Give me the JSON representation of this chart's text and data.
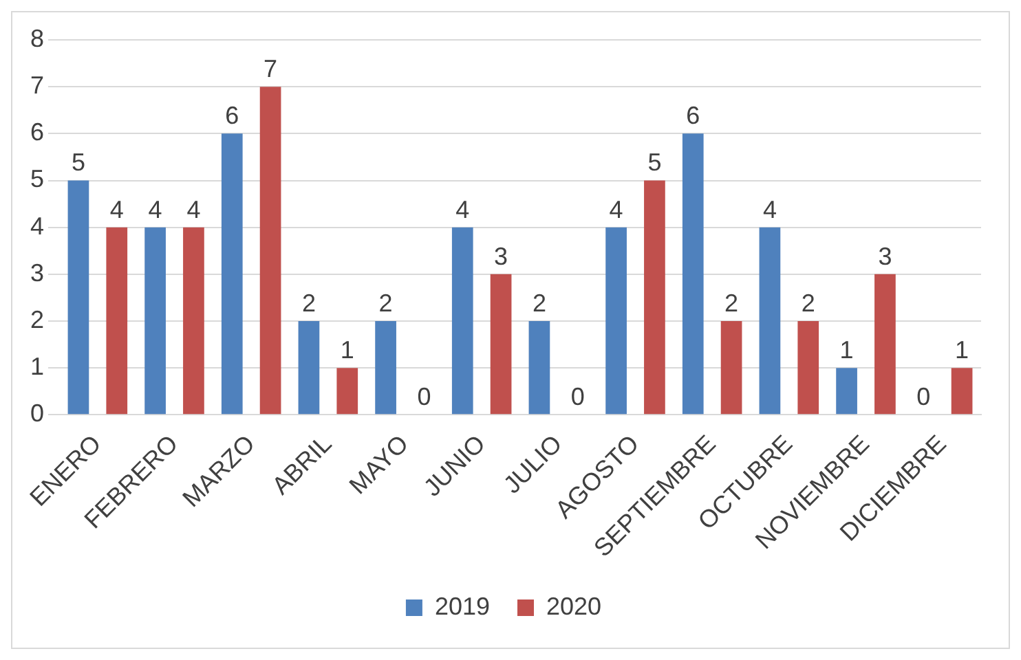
{
  "chart_data": {
    "type": "bar",
    "categories": [
      "ENERO",
      "FEBRERO",
      "MARZO",
      "ABRIL",
      "MAYO",
      "JUNIO",
      "JULIO",
      "AGOSTO",
      "SEPTIEMBRE",
      "OCTUBRE",
      "NOVIEMBRE",
      "DICIEMBRE"
    ],
    "series": [
      {
        "name": "2019",
        "color": "#4f81bd",
        "values": [
          5,
          4,
          6,
          2,
          2,
          4,
          2,
          4,
          6,
          4,
          1,
          0
        ]
      },
      {
        "name": "2020",
        "color": "#c0504d",
        "values": [
          4,
          4,
          7,
          1,
          0,
          3,
          0,
          5,
          2,
          2,
          3,
          1
        ]
      }
    ],
    "ylim": [
      0,
      8
    ],
    "yticks": [
      0,
      1,
      2,
      3,
      4,
      5,
      6,
      7,
      8
    ],
    "grid": "y",
    "legend": "bottom",
    "data_labels": true
  }
}
